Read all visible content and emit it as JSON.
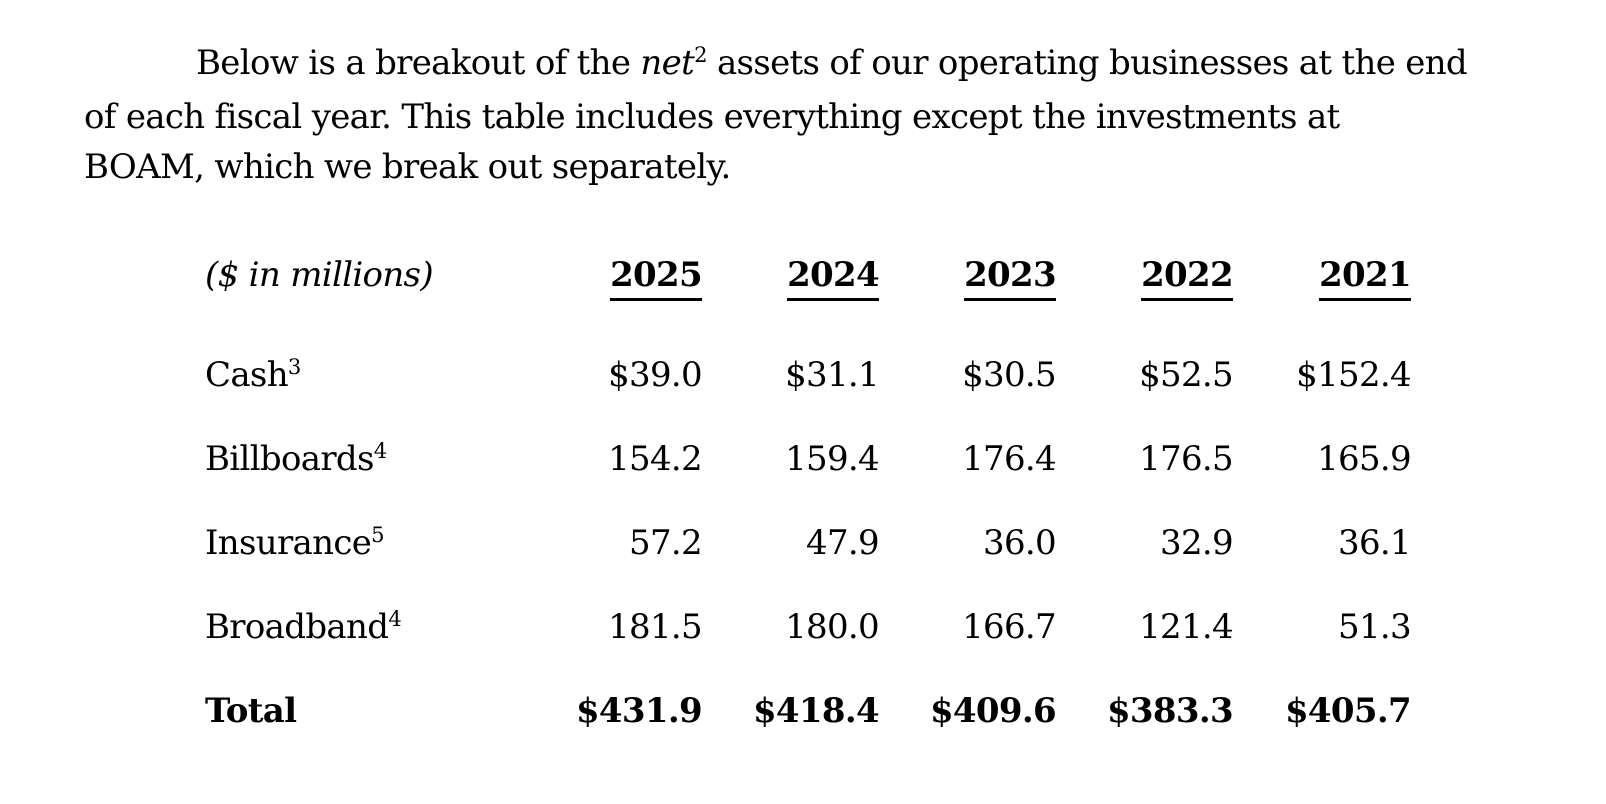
{
  "colors": {
    "text": "#000000",
    "background": "#ffffff"
  },
  "paragraph": {
    "line1_pre": "Below is a breakout of the ",
    "line1_italic": "net",
    "line1_sup": "2",
    "line1_post": " assets of our operating businesses at the end",
    "line2": "of each fiscal year. This table includes everything except the investments at",
    "line3": "BOAM, which we break out separately."
  },
  "table": {
    "unit_label": "($ in millions)",
    "years": [
      "2025",
      "2024",
      "2023",
      "2022",
      "2021"
    ],
    "rows": [
      {
        "label": "Cash",
        "footnote": "3",
        "values": [
          "$39.0",
          "$31.1",
          "$30.5",
          "$52.5",
          "$152.4"
        ]
      },
      {
        "label": "Billboards",
        "footnote": "4",
        "values": [
          "154.2",
          "159.4",
          "176.4",
          "176.5",
          "165.9"
        ]
      },
      {
        "label": "Insurance",
        "footnote": "5",
        "values": [
          "57.2",
          "47.9",
          "36.0",
          "32.9",
          "36.1"
        ]
      },
      {
        "label": "Broadband",
        "footnote": "4",
        "values": [
          "181.5",
          "180.0",
          "166.7",
          "121.4",
          "51.3"
        ]
      },
      {
        "label": "Total",
        "footnote": "",
        "values": [
          "$431.9",
          "$418.4",
          "$409.6",
          "$383.3",
          "$405.7"
        ]
      }
    ]
  }
}
